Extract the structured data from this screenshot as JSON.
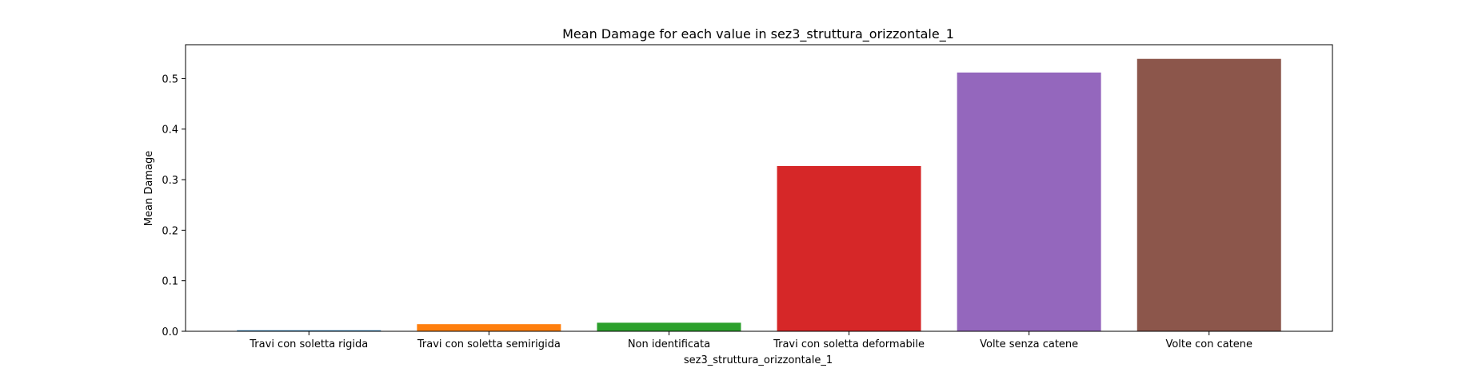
{
  "chart_data": {
    "type": "bar",
    "title": "Mean Damage for each value in sez3_struttura_orizzontale_1",
    "xlabel": "sez3_struttura_orizzontale_1",
    "ylabel": "Mean Damage",
    "categories": [
      "Travi con soletta rigida",
      "Travi con soletta semirigida",
      "Non identificata",
      "Travi con soletta deformabile",
      "Volte senza catene",
      "Volte con catene"
    ],
    "values": [
      0.002,
      0.014,
      0.017,
      0.327,
      0.512,
      0.539
    ],
    "colors": [
      "#1f77b4",
      "#ff7f0e",
      "#2ca02c",
      "#d62728",
      "#9467bd",
      "#8c564b"
    ],
    "ylim": [
      0,
      0.567
    ],
    "yticks": [
      0.0,
      0.1,
      0.2,
      0.3,
      0.4,
      0.5
    ],
    "ytick_labels": [
      "0.0",
      "0.1",
      "0.2",
      "0.3",
      "0.4",
      "0.5"
    ],
    "grid": false,
    "legend": "none"
  }
}
